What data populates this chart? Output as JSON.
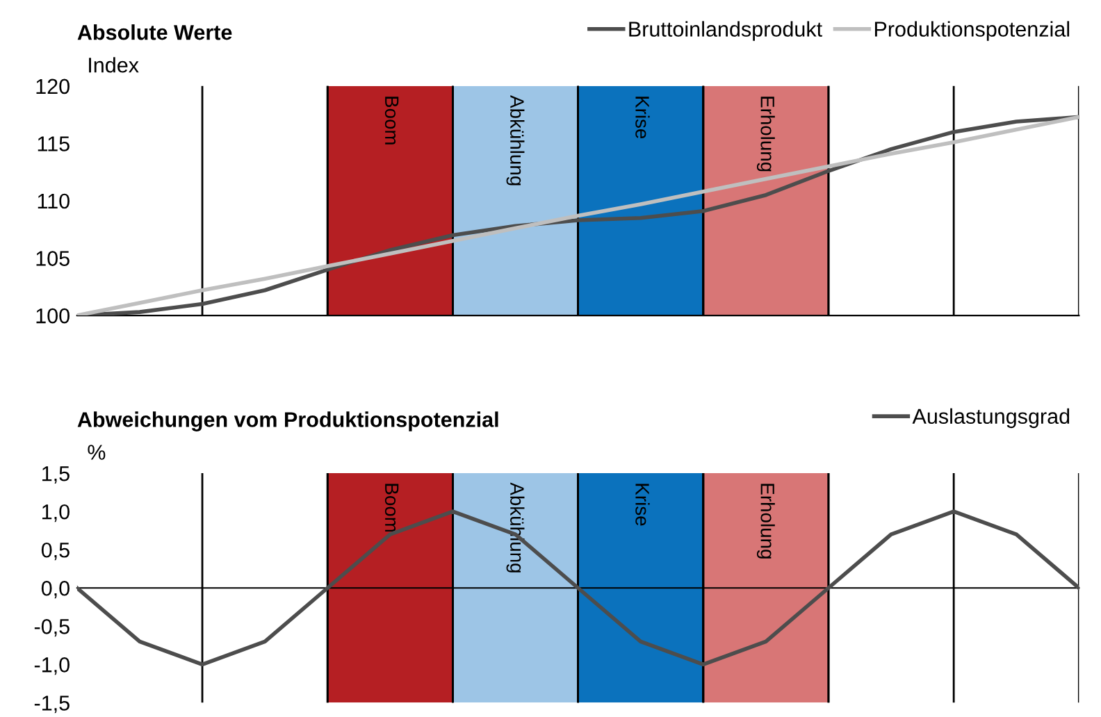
{
  "chart_data": [
    {
      "type": "line",
      "title": "Absolute Werte",
      "ylabel": "Index",
      "categories": [
        null,
        null,
        null,
        null,
        null,
        null,
        null,
        null,
        null,
        null,
        null,
        null,
        null,
        null,
        null,
        null,
        null
      ],
      "series": [
        {
          "name": "Bruttoinlandsprodukt",
          "color": "#4d4d4d",
          "values": [
            100,
            100.3,
            101,
            102.2,
            104,
            105.7,
            107,
            107.8,
            108.3,
            108.5,
            109.1,
            110.5,
            112.6,
            114.5,
            116,
            116.9,
            117.3
          ]
        },
        {
          "name": "Produktionspotenzial",
          "color": "#bfbfbf",
          "values": [
            100,
            101.1,
            102.2,
            103.2,
            104.3,
            105.4,
            106.5,
            107.6,
            108.7,
            109.7,
            110.8,
            111.9,
            113.0,
            114.1,
            115.1,
            116.2,
            117.3
          ]
        }
      ],
      "ylim": [
        100,
        120
      ],
      "yticks": [
        100,
        105,
        110,
        115,
        120
      ],
      "grid": "x",
      "legend": "top right",
      "tick_labels": "y",
      "marker": "none",
      "line_style": "solid",
      "annotations": [
        "Boom",
        "Abkühlung",
        "Krise",
        "Erholung"
      ]
    },
    {
      "type": "line",
      "title": "Abweichungen vom Produktionspotenzial",
      "ylabel": "%",
      "categories": [
        null,
        null,
        null,
        null,
        null,
        null,
        null,
        null,
        null,
        null,
        null,
        null,
        null,
        null,
        null,
        null,
        null
      ],
      "series": [
        {
          "name": "Auslastungsgrad",
          "color": "#4d4d4d",
          "values": [
            0,
            -0.7,
            -1,
            -0.7,
            0,
            0.7,
            1,
            0.7,
            0,
            -0.7,
            -1,
            -0.7,
            0,
            0.7,
            1,
            0.7,
            0
          ]
        }
      ],
      "ylim": [
        -1.5,
        1.5
      ],
      "yticks": [
        {
          "value": -1.5,
          "label": "-1,5"
        },
        {
          "value": -1.0,
          "label": "-1,0"
        },
        {
          "value": -0.5,
          "label": "-0,5"
        },
        {
          "value": 0,
          "label": "0,0"
        },
        {
          "value": 0.5,
          "label": "0,5"
        },
        {
          "value": 1.0,
          "label": "1,0"
        },
        {
          "value": 1.5,
          "label": "1,5"
        }
      ],
      "grid": "x",
      "legend": "top right",
      "tick_labels": "y",
      "marker": "none",
      "line_style": "solid",
      "annotations": [
        "Boom",
        "Abkühlung",
        "Krise",
        "Erholung"
      ]
    }
  ]
}
